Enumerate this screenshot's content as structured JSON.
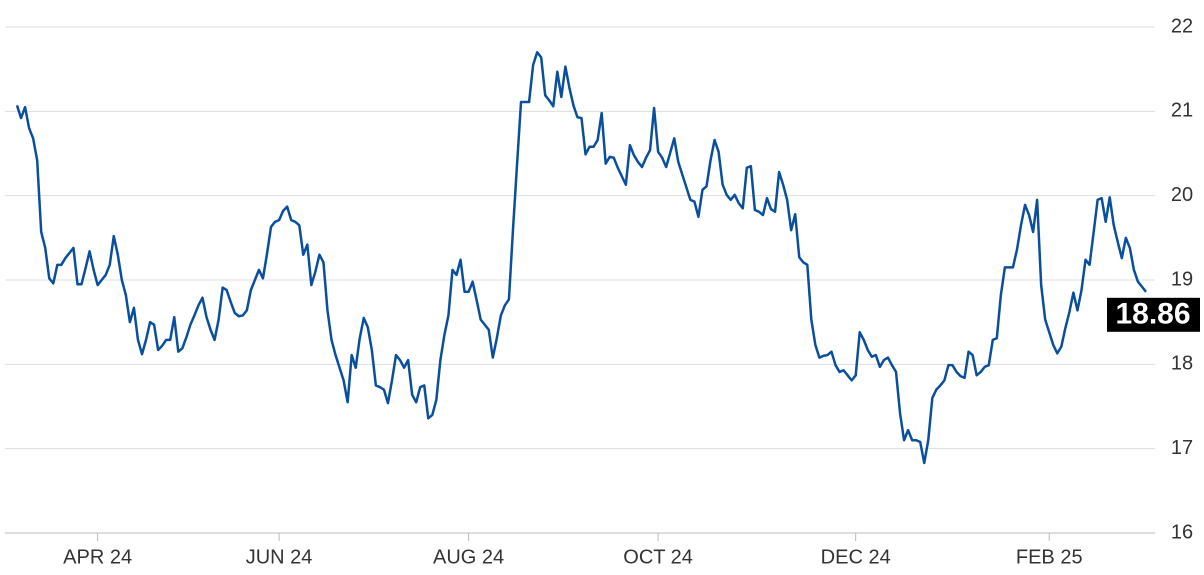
{
  "chart_data": {
    "type": "line",
    "color": "#0a4f9e",
    "grid": true,
    "values": [
      21.07,
      20.92,
      21.05,
      20.8,
      20.68,
      20.42,
      19.57,
      19.38,
      19.02,
      18.96,
      19.18,
      19.18,
      19.26,
      19.32,
      19.38,
      18.95,
      18.95,
      19.14,
      19.34,
      19.12,
      18.94,
      19.0,
      19.06,
      19.18,
      19.52,
      19.3,
      19.0,
      18.82,
      18.5,
      18.67,
      18.29,
      18.12,
      18.29,
      18.5,
      18.47,
      18.17,
      18.22,
      18.29,
      18.29,
      18.56,
      18.15,
      18.19,
      18.32,
      18.47,
      18.58,
      18.7,
      18.79,
      18.56,
      18.41,
      18.29,
      18.53,
      18.91,
      18.88,
      18.74,
      18.61,
      18.57,
      18.58,
      18.64,
      18.88,
      19.0,
      19.12,
      19.02,
      19.31,
      19.63,
      19.69,
      19.71,
      19.82,
      19.87,
      19.71,
      19.69,
      19.65,
      19.3,
      19.42,
      18.94,
      19.1,
      19.3,
      19.21,
      18.64,
      18.29,
      18.11,
      17.96,
      17.81,
      17.55,
      18.11,
      17.96,
      18.31,
      18.55,
      18.44,
      18.17,
      17.75,
      17.73,
      17.7,
      17.54,
      17.81,
      18.11,
      18.05,
      17.96,
      18.05,
      17.64,
      17.55,
      17.73,
      17.75,
      17.36,
      17.4,
      17.58,
      18.05,
      18.35,
      18.58,
      19.12,
      19.06,
      19.24,
      18.86,
      18.86,
      18.98,
      18.76,
      18.53,
      18.47,
      18.41,
      18.08,
      18.31,
      18.58,
      18.7,
      18.77,
      19.59,
      20.36,
      21.11,
      21.11,
      21.11,
      21.55,
      21.7,
      21.64,
      21.19,
      21.13,
      21.06,
      21.47,
      21.17,
      21.53,
      21.28,
      21.07,
      20.93,
      20.92,
      20.49,
      20.58,
      20.58,
      20.66,
      20.98,
      20.38,
      20.46,
      20.45,
      20.33,
      20.23,
      20.13,
      20.6,
      20.48,
      20.4,
      20.34,
      20.45,
      20.54,
      21.04,
      20.52,
      20.45,
      20.34,
      20.51,
      20.68,
      20.4,
      20.25,
      20.1,
      19.95,
      19.93,
      19.75,
      20.07,
      20.11,
      20.42,
      20.66,
      20.52,
      20.13,
      20.01,
      19.95,
      20.01,
      19.91,
      19.85,
      20.33,
      20.35,
      19.83,
      19.81,
      19.77,
      19.97,
      19.84,
      19.81,
      20.28,
      20.13,
      19.95,
      19.59,
      19.78,
      19.27,
      19.21,
      19.18,
      18.53,
      18.23,
      18.08,
      18.1,
      18.11,
      18.15,
      17.99,
      17.91,
      17.93,
      17.87,
      17.81,
      17.87,
      18.38,
      18.29,
      18.17,
      18.09,
      18.11,
      17.97,
      18.05,
      18.08,
      17.99,
      17.91,
      17.42,
      17.1,
      17.22,
      17.1,
      17.1,
      17.08,
      16.83,
      17.1,
      17.6,
      17.7,
      17.75,
      17.81,
      17.99,
      17.99,
      17.91,
      17.86,
      17.84,
      18.15,
      18.11,
      17.87,
      17.91,
      17.97,
      17.99,
      18.29,
      18.31,
      18.82,
      19.15,
      19.15,
      19.15,
      19.36,
      19.65,
      19.89,
      19.77,
      19.57,
      19.95,
      18.94,
      18.53,
      18.38,
      18.23,
      18.13,
      18.21,
      18.43,
      18.62,
      18.85,
      18.64,
      18.88,
      19.24,
      19.18,
      19.56,
      19.95,
      19.97,
      19.69,
      19.98,
      19.65,
      19.45,
      19.26,
      19.5,
      19.38,
      19.12,
      18.98,
      18.92,
      18.86
    ],
    "xlim": [
      0,
      280
    ],
    "xticks": [
      {
        "value": 20,
        "label": "APR 24"
      },
      {
        "value": 65,
        "label": "JUN 24"
      },
      {
        "value": 112,
        "label": "AUG 24"
      },
      {
        "value": 159,
        "label": "OCT 24"
      },
      {
        "value": 208,
        "label": "DEC 24"
      },
      {
        "value": 256,
        "label": "FEB 25"
      }
    ],
    "ylim": [
      16,
      22
    ],
    "yticks": [
      16,
      17,
      18,
      19,
      20,
      21,
      22
    ]
  }
}
